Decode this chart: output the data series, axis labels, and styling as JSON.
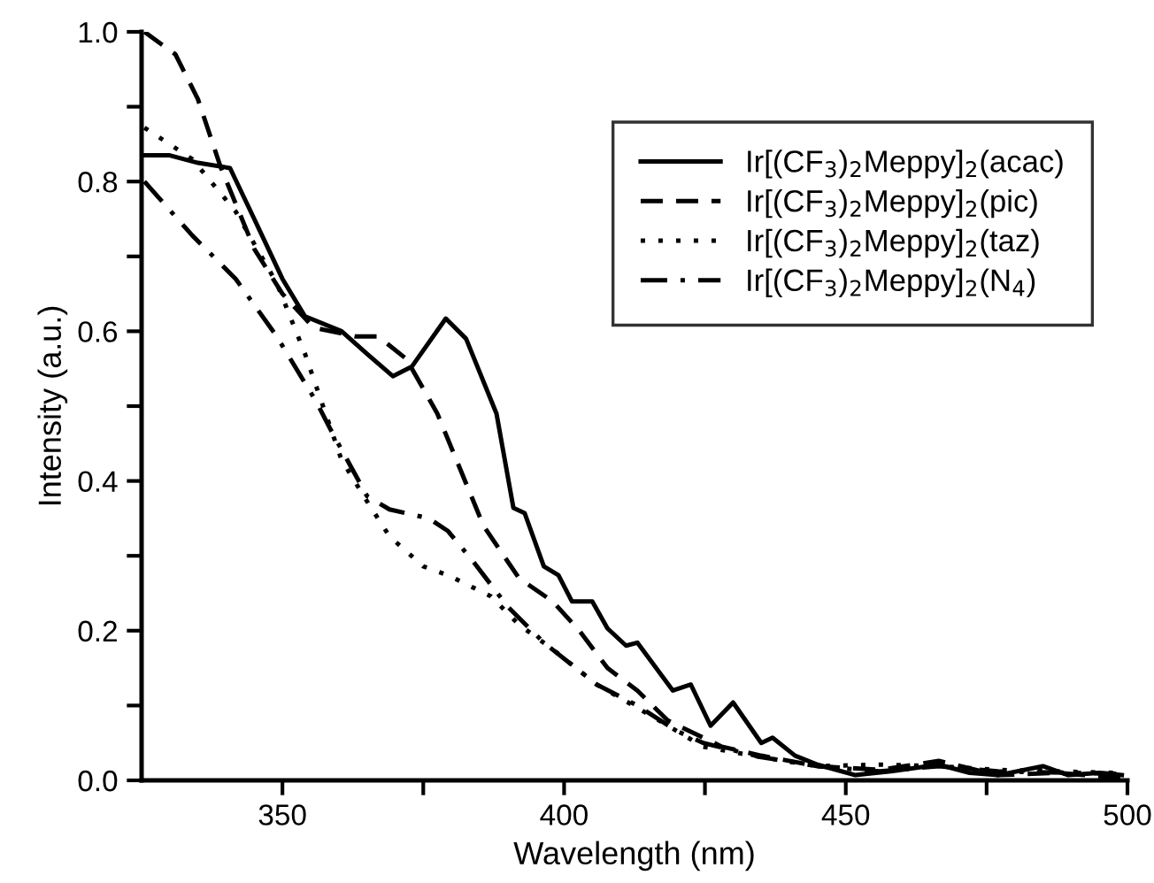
{
  "chart_data": {
    "type": "line",
    "xlabel": "Wavelength (nm)",
    "ylabel": "Intensity (a.u.)",
    "xlim": [
      325,
      500
    ],
    "ylim": [
      0,
      1.0
    ],
    "xticks": [
      350,
      {
        "value": 375,
        "label": null
      },
      400,
      {
        "value": 425,
        "label": null
      },
      450,
      {
        "value": 475,
        "label": null
      },
      500
    ],
    "yticks": [
      "0.0",
      {
        "value": 0.1,
        "label": null
      },
      {
        "value": 0.2,
        "label": "0.2"
      },
      {
        "value": 0.3,
        "label": null
      },
      {
        "value": 0.4,
        "label": "0.4"
      },
      {
        "value": 0.5,
        "label": null
      },
      {
        "value": 0.6,
        "label": "0.6"
      },
      {
        "value": 0.7,
        "label": null
      },
      {
        "value": 0.8,
        "label": "0.8"
      },
      {
        "value": 0.9,
        "label": null
      },
      {
        "value": 1.0,
        "label": "1.0"
      }
    ],
    "grid": false,
    "legend": "top right",
    "marker": "none",
    "series": [
      {
        "name": "Ir[(CF$_{3}$)$_{2}$Meppy]$_{2}$(acac)",
        "color": "#000000",
        "line_style": "solid",
        "x": [
          325,
          330,
          335,
          340.7,
          345,
          350,
          354,
          360.5,
          365,
          369.6,
          373,
          379,
          382.6,
          388,
          391,
          393,
          396.4,
          399,
          401.4,
          405,
          407.7,
          411,
          413,
          419.3,
          422.5,
          426,
          430,
          435,
          437,
          441,
          445,
          451.7,
          458,
          466.5,
          472,
          477,
          485,
          489.5,
          495,
          499
        ],
        "values": [
          0.835,
          0.835,
          0.825,
          0.818,
          0.75,
          0.67,
          0.62,
          0.6,
          0.57,
          0.54,
          0.553,
          0.617,
          0.59,
          0.49,
          0.364,
          0.357,
          0.286,
          0.274,
          0.239,
          0.239,
          0.203,
          0.18,
          0.184,
          0.12,
          0.128,
          0.073,
          0.104,
          0.05,
          0.057,
          0.033,
          0.021,
          0.007,
          0.012,
          0.021,
          0.01,
          0.007,
          0.019,
          0.007,
          0.01,
          0.007
        ]
      },
      {
        "name": "Ir[(CF$_{3}$)$_{2}$Meppy]$_{2}$(pic)",
        "color": "#000000",
        "line_style": "dashed",
        "x": [
          325.5,
          331,
          335,
          339,
          345,
          350,
          355.5,
          363,
          367,
          372,
          377.5,
          385.7,
          392,
          398,
          402.7,
          407.7,
          413,
          418.4,
          428,
          435,
          445,
          456,
          466.5,
          477,
          487.6,
          499
        ],
        "values": [
          1.0,
          0.97,
          0.91,
          0.82,
          0.71,
          0.65,
          0.605,
          0.593,
          0.593,
          0.563,
          0.49,
          0.34,
          0.27,
          0.239,
          0.2,
          0.15,
          0.12,
          0.08,
          0.045,
          0.033,
          0.019,
          0.014,
          0.026,
          0.007,
          0.01,
          0.003
        ]
      },
      {
        "name": "Ir[(CF$_{3}$)$_{2}$Meppy]$_{2}$(taz)",
        "color": "#000000",
        "line_style": "dotted",
        "x": [
          325.5,
          334,
          341.7,
          349,
          354,
          360.5,
          365,
          369,
          375,
          379.4,
          387,
          392,
          398,
          405.8,
          413,
          420,
          424.7,
          435,
          445,
          456,
          466.5,
          477,
          498
        ],
        "values": [
          0.872,
          0.83,
          0.76,
          0.664,
          0.57,
          0.428,
          0.373,
          0.326,
          0.286,
          0.274,
          0.246,
          0.208,
          0.175,
          0.128,
          0.097,
          0.066,
          0.045,
          0.031,
          0.019,
          0.021,
          0.019,
          0.014,
          0.01
        ]
      },
      {
        "name": "Ir[(CF$_{3}$)$_{2}$Meppy]$_{2}$(N$_{4}$)",
        "color": "#000000",
        "line_style": "dashdot",
        "x": [
          325.5,
          334,
          341.7,
          349,
          356,
          358.6,
          365,
          369,
          376,
          379.4,
          383.8,
          390,
          396.4,
          405.8,
          413,
          420,
          424.7,
          435,
          445,
          456,
          466.5,
          477,
          498
        ],
        "values": [
          0.8,
          0.728,
          0.67,
          0.593,
          0.506,
          0.468,
          0.38,
          0.362,
          0.35,
          0.333,
          0.293,
          0.232,
          0.184,
          0.128,
          0.1,
          0.066,
          0.05,
          0.031,
          0.019,
          0.012,
          0.019,
          0.012,
          0.009
        ]
      }
    ]
  }
}
